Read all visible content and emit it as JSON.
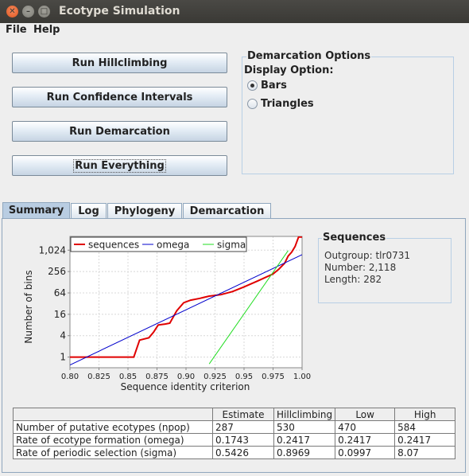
{
  "window": {
    "title": "Ecotype Simulation"
  },
  "menu": {
    "file": "File",
    "help": "Help"
  },
  "buttons": {
    "hillclimbing": "Run Hillclimbing",
    "confidence": "Run Confidence Intervals",
    "demarcation": "Run Demarcation",
    "everything": "Run Everything"
  },
  "options": {
    "group_title": "Demarcation Options",
    "display_label": "Display Option:",
    "choices": [
      {
        "label": "Bars",
        "selected": true
      },
      {
        "label": "Triangles",
        "selected": false
      }
    ]
  },
  "tabs": [
    {
      "label": "Summary",
      "active": true
    },
    {
      "label": "Log",
      "active": false
    },
    {
      "label": "Phylogeny",
      "active": false
    },
    {
      "label": "Demarcation",
      "active": false
    }
  ],
  "sequences": {
    "title": "Sequences",
    "outgroup": "Outgroup: tlr0731",
    "number": "Number: 2,118",
    "length": "Length: 282"
  },
  "table": {
    "headers": [
      "",
      "Estimate",
      "Hillclimbing",
      "Low",
      "High"
    ],
    "rows": [
      [
        "Number of putative ecotypes (npop)",
        "287",
        "530",
        "470",
        "584"
      ],
      [
        "Rate of ecotype formation (omega)",
        "0.1743",
        "0.2417",
        "0.2417",
        "0.2417"
      ],
      [
        "Rate of periodic selection (sigma)",
        "0.5426",
        "0.8969",
        "0.0997",
        "8.07"
      ]
    ]
  },
  "chart_data": {
    "type": "line",
    "xlabel": "Sequence identity criterion",
    "ylabel": "Number of bins",
    "xlim": [
      0.8,
      1.0
    ],
    "y_scale": "log2",
    "y_ticks": [
      1,
      4,
      16,
      64,
      256,
      1024
    ],
    "y_tick_labels": [
      "1",
      "4",
      "16",
      "64",
      "256",
      "1,024"
    ],
    "x_ticks": [
      0.8,
      0.825,
      0.85,
      0.875,
      0.9,
      0.925,
      0.95,
      0.975,
      1.0
    ],
    "x_tick_labels": [
      "0.80",
      "0.825",
      "0.85",
      "0.875",
      "0.90",
      "0.925",
      "0.95",
      "0.975",
      "1.00"
    ],
    "grid": true,
    "legend_position": "top-left",
    "series": [
      {
        "name": "sequences",
        "color": "#e00000",
        "points": [
          [
            0.8,
            1
          ],
          [
            0.818,
            1
          ],
          [
            0.835,
            1
          ],
          [
            0.85,
            1
          ],
          [
            0.855,
            1
          ],
          [
            0.86,
            3
          ],
          [
            0.868,
            3.5
          ],
          [
            0.872,
            5
          ],
          [
            0.876,
            8
          ],
          [
            0.882,
            8.5
          ],
          [
            0.886,
            9
          ],
          [
            0.892,
            20
          ],
          [
            0.898,
            34
          ],
          [
            0.904,
            40
          ],
          [
            0.912,
            45
          ],
          [
            0.92,
            52
          ],
          [
            0.93,
            57
          ],
          [
            0.94,
            70
          ],
          [
            0.95,
            95
          ],
          [
            0.962,
            140
          ],
          [
            0.975,
            220
          ],
          [
            0.98,
            300
          ],
          [
            0.985,
            440
          ],
          [
            0.988,
            700
          ],
          [
            0.991,
            900
          ],
          [
            0.994,
            1300
          ],
          [
            0.997,
            2400
          ],
          [
            1.0,
            2400
          ]
        ]
      },
      {
        "name": "omega",
        "color": "#0000cc",
        "points": [
          [
            0.8,
            0.6
          ],
          [
            1.0,
            768
          ]
        ]
      },
      {
        "name": "sigma",
        "color": "#22dd22",
        "points": [
          [
            0.92,
            0.64
          ],
          [
            0.988,
            1000
          ]
        ]
      }
    ]
  }
}
